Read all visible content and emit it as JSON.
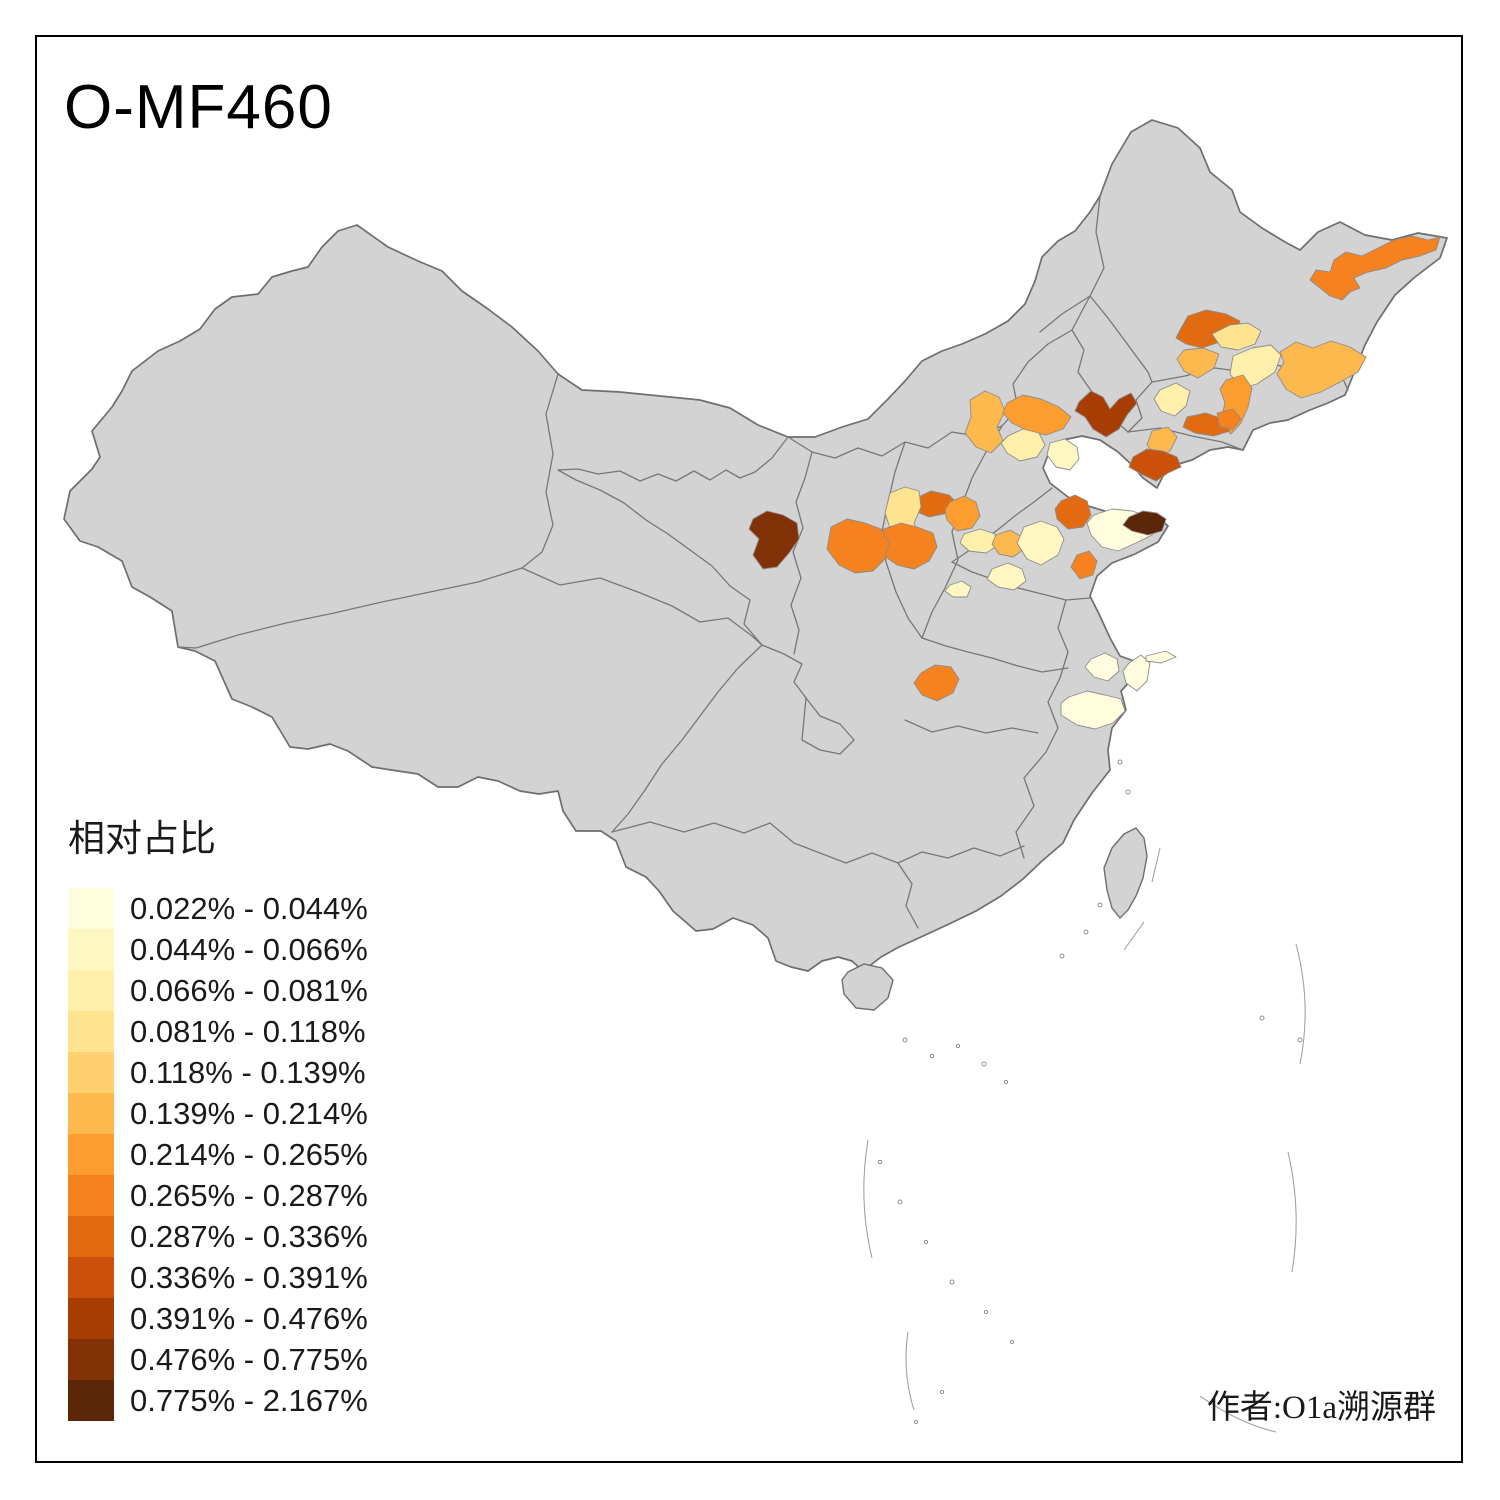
{
  "title": "O-MF460",
  "attribution": "作者:O1a溯源群",
  "legend": {
    "title": "相对占比",
    "classes": [
      {
        "label": "0.022% - 0.044%",
        "color": "#FFFDDE"
      },
      {
        "label": "0.044% - 0.066%",
        "color": "#FFF7C2"
      },
      {
        "label": "0.066% - 0.081%",
        "color": "#FEEFAA"
      },
      {
        "label": "0.081% - 0.118%",
        "color": "#FEE391"
      },
      {
        "label": "0.118% - 0.139%",
        "color": "#FED16E"
      },
      {
        "label": "0.139% - 0.214%",
        "color": "#FDB94E"
      },
      {
        "label": "0.214% - 0.265%",
        "color": "#FD9D30"
      },
      {
        "label": "0.265% - 0.287%",
        "color": "#F5821E"
      },
      {
        "label": "0.287% - 0.336%",
        "color": "#E26B12"
      },
      {
        "label": "0.336% - 0.391%",
        "color": "#CB510A"
      },
      {
        "label": "0.391% - 0.476%",
        "color": "#A83D04"
      },
      {
        "label": "0.476% - 0.775%",
        "color": "#823005"
      },
      {
        "label": "0.775% - 2.167%",
        "color": "#5C2608"
      }
    ]
  },
  "map": {
    "base_fill": "#D3D3D3",
    "border_color": "#777777",
    "background": "#FFFFFF",
    "taiwan_fill": "#D3D3D3"
  },
  "chart_data": {
    "type": "choropleth",
    "title": "O-MF460",
    "legend_title": "相对占比",
    "legend_position": "bottom-left",
    "classes": [
      "0.022% - 0.044%",
      "0.044% - 0.066%",
      "0.066% - 0.081%",
      "0.081% - 0.118%",
      "0.118% - 0.139%",
      "0.139% - 0.214%",
      "0.214% - 0.265%",
      "0.265% - 0.287%",
      "0.287% - 0.336%",
      "0.336% - 0.391%",
      "0.391% - 0.476%",
      "0.476% - 0.775%",
      "0.775% - 2.167%"
    ],
    "palette": [
      "#FFFDDE",
      "#FFF7C2",
      "#FEEFAA",
      "#FEE391",
      "#FED16E",
      "#FDB94E",
      "#FD9D30",
      "#F5821E",
      "#E26B12",
      "#CB510A",
      "#A83D04",
      "#823005",
      "#5C2608"
    ],
    "no_data_fill": "#D3D3D3",
    "region": "China, prefecture-level divisions",
    "annotation": "作者:O1a溯源群"
  }
}
